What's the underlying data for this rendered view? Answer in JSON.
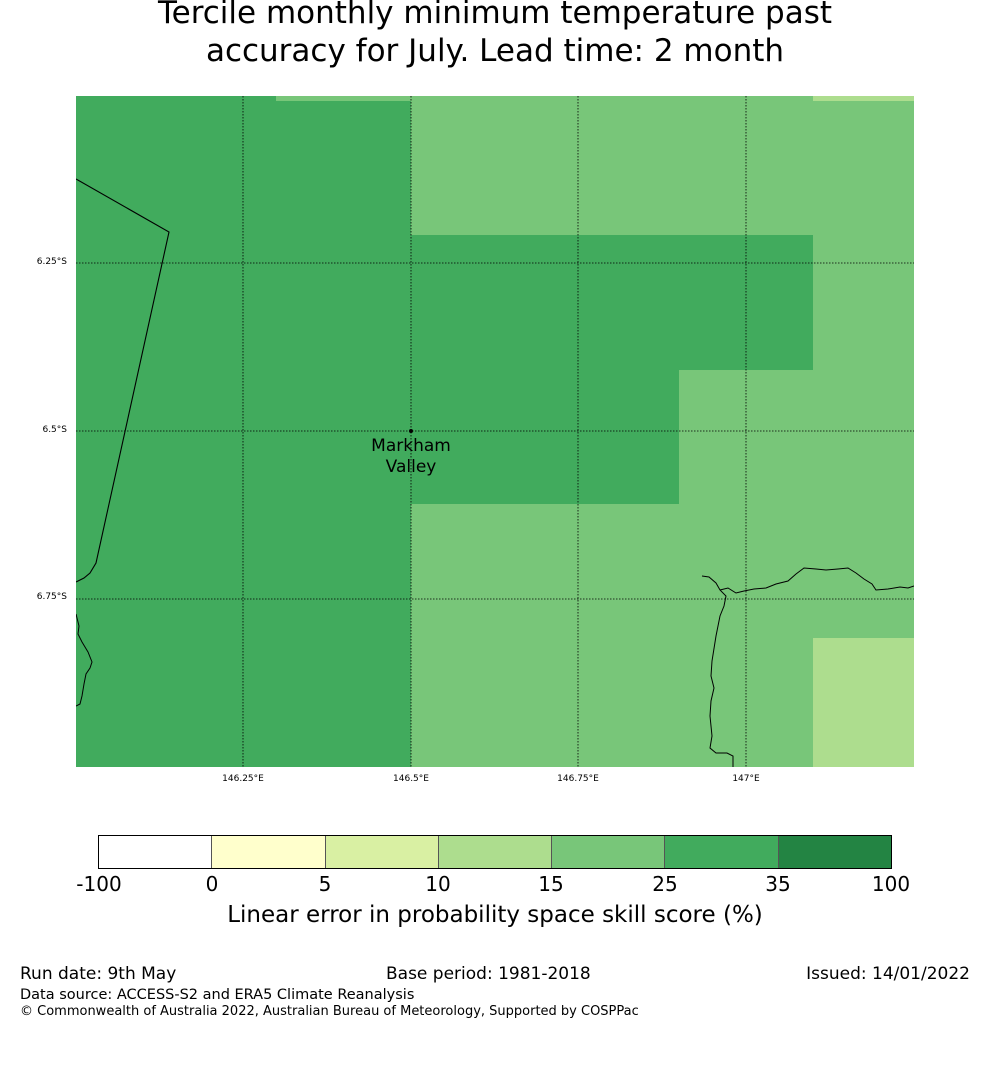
{
  "title": {
    "line1": "Tercile monthly minimum temperature past",
    "line2": "accuracy for July. Lead time: 2 month"
  },
  "map": {
    "place_label_line1": "Markham",
    "place_label_line2": "Valley",
    "lat_labels": [
      "6.25°S",
      "6.5°S",
      "6.75°S"
    ],
    "lon_labels": [
      "146.25°E",
      "146.5°E",
      "146.75°E",
      "147°E"
    ],
    "colors": {
      "dark_green": "#41ab5d",
      "mid_green": "#78c679",
      "light_green": "#addd8e"
    }
  },
  "colorbar": {
    "ticks": [
      "-100",
      "0",
      "5",
      "10",
      "15",
      "25",
      "35",
      "100"
    ],
    "colors": [
      "#ffffff",
      "#ffffcc",
      "#d9f0a3",
      "#addd8e",
      "#78c679",
      "#41ab5d",
      "#238443"
    ],
    "label": "Linear error in probability space skill score (%)"
  },
  "footer": {
    "run_date": "Run date: 9th May",
    "base_period": "Base period: 1981-2018",
    "issued": "Issued: 14/01/2022",
    "data_source": "Data source: ACCESS-S2 and ERA5 Climate Reanalysis",
    "copyright": "© Commonwealth of Australia 2022, Australian Bureau of Meteorology, Supported by COSPPac"
  }
}
